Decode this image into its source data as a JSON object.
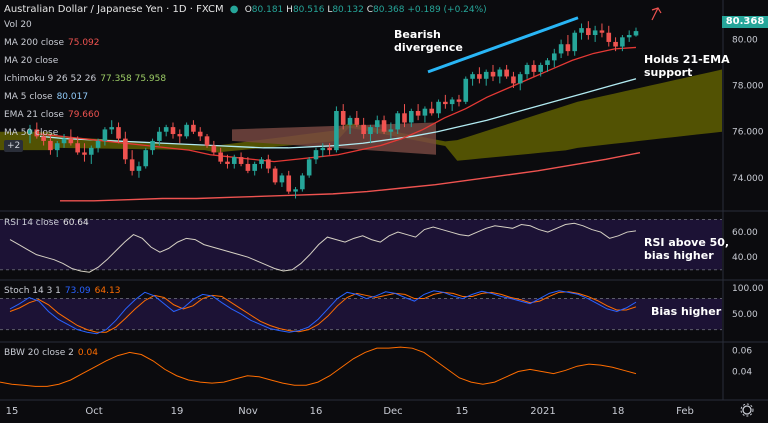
{
  "header": {
    "title": "Australian Dollar / Japanese Yen · 1D · FXCM",
    "open_label": "O",
    "open": "80.181",
    "high_label": "H",
    "high": "80.516",
    "low_label": "L",
    "low": "80.132",
    "close_label": "C",
    "close": "80.368",
    "change": "+0.189 (+0.24%)"
  },
  "main_legends": [
    {
      "label": "Vol 20",
      "value": "",
      "color": "#555a66"
    },
    {
      "label": "MA 200 close",
      "value": "75.092",
      "color": "#ef5350"
    },
    {
      "label": "MA 20 close",
      "value": "",
      "color": "#555a66"
    },
    {
      "label": "Ichimoku 9 26 52 26",
      "value": "77.358  75.958",
      "color": "#9ccc65"
    },
    {
      "label": "MA 5 close",
      "value": "80.017",
      "color": "#90caf9"
    },
    {
      "label": "EMA 21 close",
      "value": "79.660",
      "color": "#ef5350"
    },
    {
      "label": "MA 50 close",
      "value": "",
      "color": "#b2ebf2"
    }
  ],
  "more_indicators": "+2",
  "price_tag": "80.368",
  "annotations": {
    "bearish": "Bearish\ndivergence",
    "ema": "Holds 21-EMA\nsupport",
    "rsi": "RSI above 50,\nbias higher",
    "stoch": "Bias higher"
  },
  "panes": {
    "rsi": {
      "label": "RSI 14 close",
      "value": "60.64"
    },
    "stoch": {
      "label": "Stoch 14 3 1",
      "value_k": "73.09",
      "value_d": "64.13"
    },
    "bbw": {
      "label": "BBW 20 close 2",
      "value": "0.04"
    }
  },
  "chart_data": [
    {
      "type": "candlestick",
      "title": "Australian Dollar / Japanese Yen · 1D · FXCM",
      "y_ticks": [
        "80.00",
        "78.000",
        "76.000",
        "74.000"
      ],
      "ylim": [
        72.6,
        81.2
      ],
      "x_ticks": [
        "15",
        "Oct",
        "19",
        "Nov",
        "16",
        "Dec",
        "15",
        "2021",
        "18",
        "Feb"
      ],
      "grid": false,
      "candles_ohlc": [
        [
          75.9,
          76.3,
          75.5,
          76.1
        ],
        [
          76.1,
          76.4,
          75.7,
          75.8
        ],
        [
          75.8,
          76.0,
          75.4,
          75.6
        ],
        [
          75.6,
          75.9,
          75.0,
          75.2
        ],
        [
          75.2,
          75.6,
          74.9,
          75.5
        ],
        [
          75.5,
          75.9,
          75.3,
          75.7
        ],
        [
          75.7,
          76.1,
          75.4,
          75.5
        ],
        [
          75.5,
          75.8,
          75.0,
          75.1
        ],
        [
          75.1,
          75.5,
          74.7,
          75.0
        ],
        [
          75.0,
          75.4,
          74.6,
          75.3
        ],
        [
          75.3,
          75.7,
          75.1,
          75.6
        ],
        [
          75.6,
          76.2,
          75.4,
          76.1
        ],
        [
          76.1,
          76.5,
          75.9,
          76.2
        ],
        [
          76.2,
          76.4,
          75.5,
          75.7
        ],
        [
          75.7,
          76.0,
          74.6,
          74.8
        ],
        [
          74.8,
          75.2,
          74.1,
          74.3
        ],
        [
          74.3,
          74.7,
          74.0,
          74.5
        ],
        [
          74.5,
          75.3,
          74.4,
          75.2
        ],
        [
          75.2,
          75.7,
          75.0,
          75.6
        ],
        [
          75.6,
          76.2,
          75.4,
          76.0
        ],
        [
          76.0,
          76.3,
          75.8,
          76.2
        ],
        [
          76.2,
          76.4,
          75.7,
          75.9
        ],
        [
          75.9,
          76.1,
          75.5,
          75.8
        ],
        [
          75.8,
          76.4,
          75.7,
          76.3
        ],
        [
          76.3,
          76.5,
          75.9,
          76.0
        ],
        [
          76.0,
          76.2,
          75.6,
          75.8
        ],
        [
          75.8,
          75.9,
          75.3,
          75.4
        ],
        [
          75.4,
          75.6,
          75.0,
          75.1
        ],
        [
          75.1,
          75.3,
          74.6,
          74.7
        ],
        [
          74.7,
          75.0,
          74.4,
          74.6
        ],
        [
          74.6,
          75.0,
          74.4,
          74.9
        ],
        [
          74.9,
          75.1,
          74.5,
          74.6
        ],
        [
          74.6,
          74.9,
          74.2,
          74.3
        ],
        [
          74.3,
          74.7,
          74.1,
          74.6
        ],
        [
          74.6,
          74.9,
          74.4,
          74.8
        ],
        [
          74.8,
          75.0,
          74.2,
          74.4
        ],
        [
          74.4,
          74.5,
          73.7,
          73.8
        ],
        [
          73.8,
          74.2,
          73.6,
          74.1
        ],
        [
          74.1,
          74.3,
          73.3,
          73.4
        ],
        [
          73.4,
          73.6,
          73.1,
          73.5
        ],
        [
          73.5,
          74.2,
          73.4,
          74.1
        ],
        [
          74.1,
          74.9,
          74.0,
          74.8
        ],
        [
          74.8,
          75.3,
          74.6,
          75.2
        ],
        [
          75.2,
          75.5,
          74.9,
          75.3
        ],
        [
          75.3,
          75.5,
          75.0,
          75.2
        ],
        [
          75.2,
          77.1,
          75.1,
          76.9
        ],
        [
          76.9,
          77.2,
          76.1,
          76.3
        ],
        [
          76.3,
          76.7,
          75.9,
          76.6
        ],
        [
          76.6,
          76.9,
          76.2,
          76.3
        ],
        [
          76.3,
          76.6,
          75.7,
          75.9
        ],
        [
          75.9,
          76.3,
          75.5,
          76.2
        ],
        [
          76.2,
          76.7,
          75.9,
          76.5
        ],
        [
          76.5,
          76.7,
          75.9,
          76.0
        ],
        [
          76.0,
          76.4,
          75.7,
          76.1
        ],
        [
          76.1,
          76.9,
          75.9,
          76.8
        ],
        [
          76.8,
          77.2,
          76.2,
          76.4
        ],
        [
          76.4,
          77.0,
          76.2,
          76.9
        ],
        [
          76.9,
          77.2,
          76.5,
          76.7
        ],
        [
          76.7,
          77.1,
          76.4,
          77.0
        ],
        [
          77.0,
          77.3,
          76.7,
          76.8
        ],
        [
          76.8,
          77.4,
          76.6,
          77.3
        ],
        [
          77.3,
          77.6,
          77.0,
          77.2
        ],
        [
          77.2,
          77.5,
          76.9,
          77.4
        ],
        [
          77.4,
          77.6,
          77.1,
          77.3
        ],
        [
          77.3,
          78.4,
          77.2,
          78.3
        ],
        [
          78.3,
          78.6,
          78.0,
          78.5
        ],
        [
          78.5,
          78.8,
          78.1,
          78.3
        ],
        [
          78.3,
          78.7,
          78.0,
          78.6
        ],
        [
          78.6,
          78.9,
          78.2,
          78.4
        ],
        [
          78.4,
          78.8,
          78.1,
          78.7
        ],
        [
          78.7,
          78.9,
          78.3,
          78.4
        ],
        [
          78.4,
          78.6,
          77.9,
          78.1
        ],
        [
          78.1,
          78.6,
          77.8,
          78.5
        ],
        [
          78.5,
          79.0,
          78.3,
          78.9
        ],
        [
          78.9,
          79.1,
          78.4,
          78.6
        ],
        [
          78.6,
          79.0,
          78.4,
          78.9
        ],
        [
          78.9,
          79.2,
          78.6,
          79.1
        ],
        [
          79.1,
          79.6,
          78.8,
          79.4
        ],
        [
          79.4,
          80.0,
          79.2,
          79.8
        ],
        [
          79.8,
          80.2,
          79.3,
          79.5
        ],
        [
          79.5,
          80.4,
          79.3,
          80.3
        ],
        [
          80.3,
          80.7,
          80.0,
          80.5
        ],
        [
          80.5,
          80.8,
          80.0,
          80.2
        ],
        [
          80.2,
          80.6,
          79.9,
          80.4
        ],
        [
          80.4,
          80.7,
          80.1,
          80.3
        ],
        [
          80.3,
          80.6,
          79.7,
          79.9
        ],
        [
          79.9,
          80.1,
          79.5,
          79.7
        ],
        [
          79.7,
          80.2,
          79.5,
          80.1
        ],
        [
          80.1,
          80.4,
          79.9,
          80.2
        ],
        [
          80.18,
          80.52,
          80.13,
          80.37
        ]
      ],
      "ema21_series": [
        75.9,
        75.8,
        75.7,
        75.6,
        75.5,
        75.4,
        75.3,
        75.2,
        75.0,
        74.9,
        74.8,
        74.7,
        74.8,
        74.9,
        75.0,
        75.2,
        75.4,
        75.7,
        76.1,
        76.6,
        77.0,
        77.5,
        77.9,
        78.3,
        78.7,
        79.1,
        79.4,
        79.6,
        79.66
      ],
      "ma50_series": [
        75.8,
        75.7,
        75.65,
        75.6,
        75.55,
        75.5,
        75.45,
        75.4,
        75.35,
        75.3,
        75.3,
        75.35,
        75.4,
        75.5,
        75.65,
        75.8,
        76.0,
        76.25,
        76.5,
        76.8,
        77.1,
        77.4,
        77.7,
        78.0,
        78.3
      ],
      "ma200_series": [
        73.0,
        73.0,
        73.05,
        73.1,
        73.1,
        73.15,
        73.2,
        73.25,
        73.3,
        73.4,
        73.55,
        73.7,
        73.9,
        74.1,
        74.3,
        74.55,
        74.8,
        75.09
      ]
    },
    {
      "type": "line",
      "name": "RSI 14 close",
      "y_ticks": [
        "60.00",
        "40.00"
      ],
      "ylim": [
        25,
        72
      ],
      "values": [
        54,
        50,
        46,
        42,
        40,
        38,
        35,
        31,
        29,
        28,
        32,
        38,
        45,
        52,
        58,
        55,
        48,
        44,
        47,
        52,
        55,
        54,
        50,
        48,
        46,
        44,
        42,
        40,
        37,
        34,
        31,
        29,
        30,
        35,
        42,
        50,
        56,
        54,
        52,
        55,
        57,
        54,
        52,
        57,
        60,
        58,
        56,
        62,
        64,
        62,
        60,
        58,
        57,
        60,
        63,
        65,
        64,
        63,
        66,
        65,
        62,
        60,
        63,
        66,
        67,
        65,
        62,
        60,
        55,
        57,
        60,
        61
      ]
    },
    {
      "type": "line",
      "name": "Stoch 14 3 1",
      "y_ticks": [
        "100.00",
        "50.00"
      ],
      "ylim": [
        0,
        110
      ],
      "series_k": [
        60,
        70,
        82,
        75,
        55,
        40,
        30,
        20,
        15,
        12,
        20,
        38,
        60,
        78,
        92,
        85,
        70,
        55,
        62,
        78,
        88,
        85,
        72,
        60,
        50,
        38,
        30,
        22,
        18,
        15,
        18,
        25,
        40,
        60,
        80,
        92,
        88,
        80,
        85,
        93,
        90,
        82,
        75,
        88,
        95,
        92,
        85,
        80,
        88,
        94,
        90,
        84,
        80,
        75,
        70,
        80,
        90,
        95,
        92,
        88,
        80,
        70,
        60,
        55,
        62,
        73
      ],
      "series_d": [
        55,
        62,
        72,
        78,
        68,
        52,
        40,
        28,
        20,
        15,
        15,
        25,
        42,
        60,
        76,
        86,
        82,
        68,
        60,
        66,
        80,
        86,
        84,
        72,
        60,
        48,
        36,
        28,
        22,
        18,
        16,
        20,
        30,
        46,
        66,
        82,
        90,
        86,
        82,
        86,
        90,
        88,
        80,
        80,
        88,
        92,
        90,
        84,
        84,
        90,
        92,
        88,
        82,
        78,
        72,
        75,
        84,
        92,
        93,
        90,
        84,
        76,
        66,
        58,
        58,
        64
      ]
    },
    {
      "type": "line",
      "name": "BBW 20 close 2",
      "y_ticks": [
        "0.06",
        "0.04"
      ],
      "ylim": [
        0.015,
        0.065
      ],
      "values": [
        0.03,
        0.028,
        0.027,
        0.026,
        0.026,
        0.028,
        0.032,
        0.038,
        0.044,
        0.05,
        0.055,
        0.058,
        0.056,
        0.05,
        0.042,
        0.036,
        0.032,
        0.03,
        0.029,
        0.03,
        0.033,
        0.036,
        0.035,
        0.032,
        0.029,
        0.027,
        0.027,
        0.03,
        0.036,
        0.044,
        0.052,
        0.058,
        0.062,
        0.062,
        0.063,
        0.062,
        0.058,
        0.05,
        0.042,
        0.034,
        0.03,
        0.028,
        0.03,
        0.035,
        0.04,
        0.042,
        0.04,
        0.038,
        0.041,
        0.045,
        0.047,
        0.046,
        0.044,
        0.041,
        0.038
      ]
    }
  ]
}
